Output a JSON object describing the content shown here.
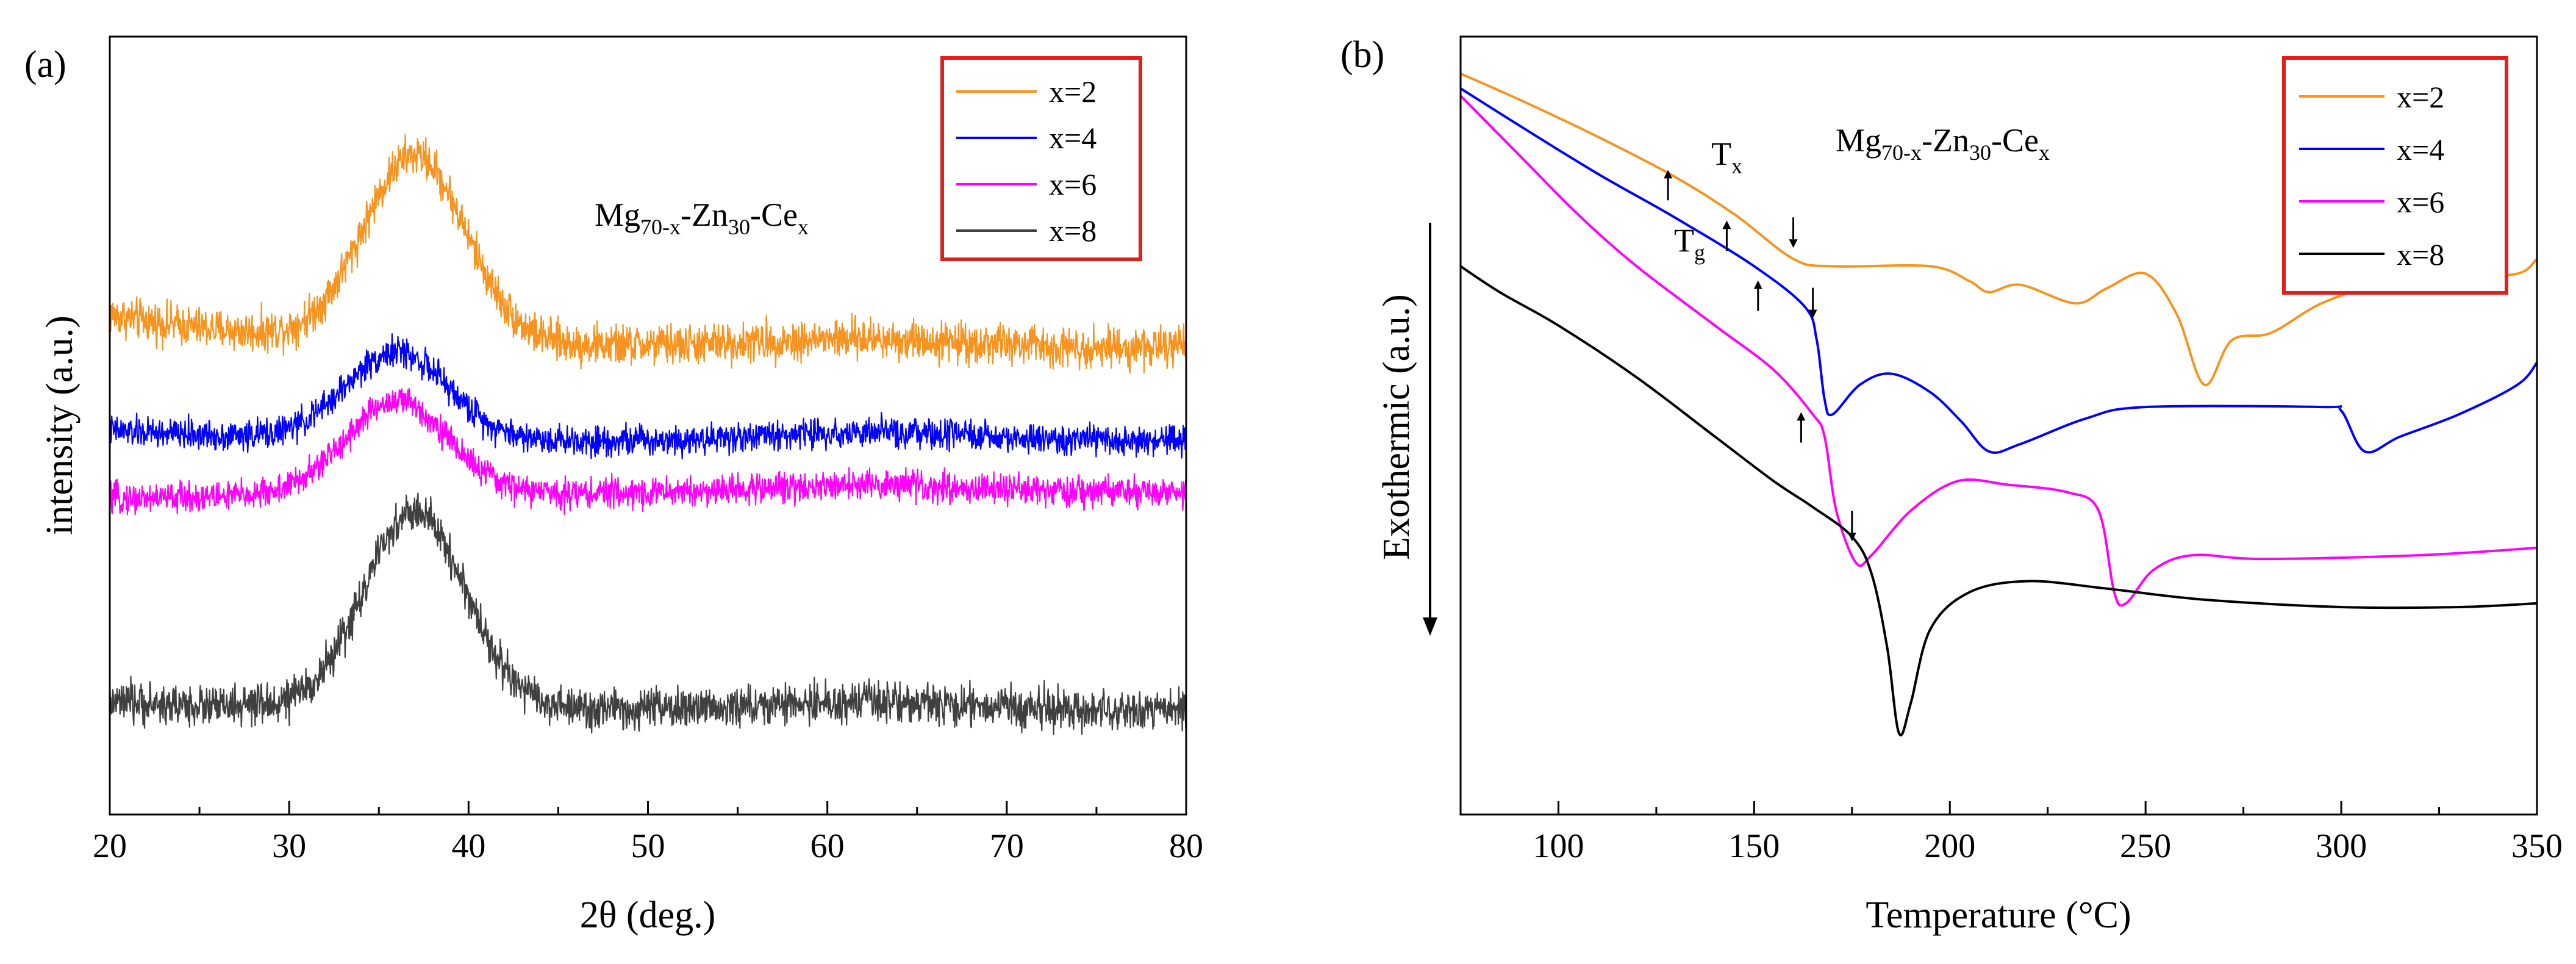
{
  "chart_data": [
    {
      "panel": "(a)",
      "type": "line",
      "title": "",
      "xlabel": "2θ (deg.)",
      "ylabel": "intensity (a.u.)",
      "xlim": [
        20,
        80
      ],
      "xticks": [
        20,
        30,
        40,
        50,
        60,
        70,
        80
      ],
      "grid": false,
      "legend_placement": "top-right",
      "annotation": {
        "base1": "Mg",
        "sub1": "70-x",
        "base2": "-Zn",
        "sub2": "30",
        "base3": "-Ce",
        "sub3": "x"
      },
      "series": [
        {
          "name": "x=2",
          "color": "#F7931E",
          "peak_center": 37,
          "peak_height": 0.9,
          "baseline": [
            0.8,
            0.16
          ],
          "noise": 0.06
        },
        {
          "name": "x=4",
          "color": "#0000FF",
          "peak_center": 36,
          "peak_height": 0.42,
          "baseline": [
            0.35,
            0.05
          ],
          "noise": 0.045
        },
        {
          "name": "x=6",
          "color": "#FF00FF",
          "peak_center": 36,
          "peak_height": 0.45,
          "baseline": [
            0.1,
            -0.03
          ],
          "noise": 0.045
        },
        {
          "name": "x=8",
          "color": "#404040",
          "peak_center": 37,
          "peak_height": 0.95,
          "baseline": [
            -0.95,
            0.04
          ],
          "noise": 0.06
        }
      ]
    },
    {
      "panel": "(b)",
      "type": "line",
      "title": "",
      "xlabel": "Temperature (°C)",
      "ylabel": "Exothermic (a.u.)",
      "xlim": [
        75,
        350
      ],
      "xticks": [
        100,
        150,
        200,
        250,
        300,
        350
      ],
      "grid": false,
      "legend_placement": "top-right",
      "annotation": {
        "base1": "Mg",
        "sub1": "70-x",
        "base2": "-Zn",
        "sub2": "30",
        "base3": "-Ce",
        "sub3": "x"
      },
      "marker_labels": {
        "tx_base": "T",
        "tx_sub": "x",
        "tg_base": "T",
        "tg_sub": "g"
      },
      "series": [
        {
          "name": "x=2",
          "color": "#F7931E",
          "Tg": 143,
          "Tx": 160,
          "points": [
            [
              75,
              1.0
            ],
            [
              90,
              0.93
            ],
            [
              110,
              0.83
            ],
            [
              130,
              0.72
            ],
            [
              145,
              0.62
            ],
            [
              160,
              0.5
            ],
            [
              170,
              0.48
            ],
            [
              195,
              0.48
            ],
            [
              205,
              0.44
            ],
            [
              210,
              0.41
            ],
            [
              218,
              0.43
            ],
            [
              232,
              0.38
            ],
            [
              240,
              0.42
            ],
            [
              250,
              0.46
            ],
            [
              258,
              0.35
            ],
            [
              265,
              0.16
            ],
            [
              272,
              0.28
            ],
            [
              282,
              0.3
            ],
            [
              295,
              0.38
            ],
            [
              310,
              0.43
            ],
            [
              330,
              0.45
            ],
            [
              345,
              0.46
            ],
            [
              350,
              0.5
            ]
          ]
        },
        {
          "name": "x=4",
          "color": "#0000FF",
          "Tg": 151,
          "Tx": 165,
          "points": [
            [
              75,
              0.96
            ],
            [
              90,
              0.86
            ],
            [
              110,
              0.73
            ],
            [
              130,
              0.61
            ],
            [
              150,
              0.48
            ],
            [
              163,
              0.37
            ],
            [
              166,
              0.28
            ],
            [
              168,
              0.12
            ],
            [
              170,
              0.08
            ],
            [
              177,
              0.16
            ],
            [
              185,
              0.19
            ],
            [
              195,
              0.14
            ],
            [
              203,
              0.06
            ],
            [
              210,
              -0.02
            ],
            [
              218,
              0.0
            ],
            [
              235,
              0.07
            ],
            [
              250,
              0.1
            ],
            [
              295,
              0.1
            ],
            [
              300,
              0.09
            ],
            [
              306,
              -0.02
            ],
            [
              315,
              0.02
            ],
            [
              330,
              0.08
            ],
            [
              345,
              0.16
            ],
            [
              350,
              0.22
            ]
          ]
        },
        {
          "name": "x=6",
          "color": "#FF00FF",
          "Tg": 162,
          "Tx": 175,
          "points": [
            [
              75,
              0.94
            ],
            [
              90,
              0.78
            ],
            [
              105,
              0.62
            ],
            [
              120,
              0.48
            ],
            [
              140,
              0.32
            ],
            [
              155,
              0.2
            ],
            [
              165,
              0.08
            ],
            [
              168,
              0.02
            ],
            [
              171,
              -0.18
            ],
            [
              176,
              -0.32
            ],
            [
              180,
              -0.3
            ],
            [
              190,
              -0.18
            ],
            [
              202,
              -0.1
            ],
            [
              215,
              -0.11
            ],
            [
              230,
              -0.13
            ],
            [
              238,
              -0.18
            ],
            [
              242,
              -0.4
            ],
            [
              245,
              -0.43
            ],
            [
              252,
              -0.34
            ],
            [
              262,
              -0.3
            ],
            [
              280,
              -0.31
            ],
            [
              320,
              -0.3
            ],
            [
              350,
              -0.28
            ]
          ]
        },
        {
          "name": "x=8",
          "color": "#000000",
          "points": [
            [
              75,
              0.48
            ],
            [
              85,
              0.41
            ],
            [
              100,
              0.32
            ],
            [
              120,
              0.18
            ],
            [
              140,
              0.02
            ],
            [
              155,
              -0.1
            ],
            [
              165,
              -0.17
            ],
            [
              175,
              -0.25
            ],
            [
              180,
              -0.35
            ],
            [
              184,
              -0.55
            ],
            [
              187,
              -0.78
            ],
            [
              190,
              -0.7
            ],
            [
              195,
              -0.5
            ],
            [
              205,
              -0.4
            ],
            [
              220,
              -0.37
            ],
            [
              240,
              -0.39
            ],
            [
              265,
              -0.42
            ],
            [
              300,
              -0.44
            ],
            [
              330,
              -0.44
            ],
            [
              350,
              -0.43
            ]
          ]
        }
      ]
    }
  ]
}
